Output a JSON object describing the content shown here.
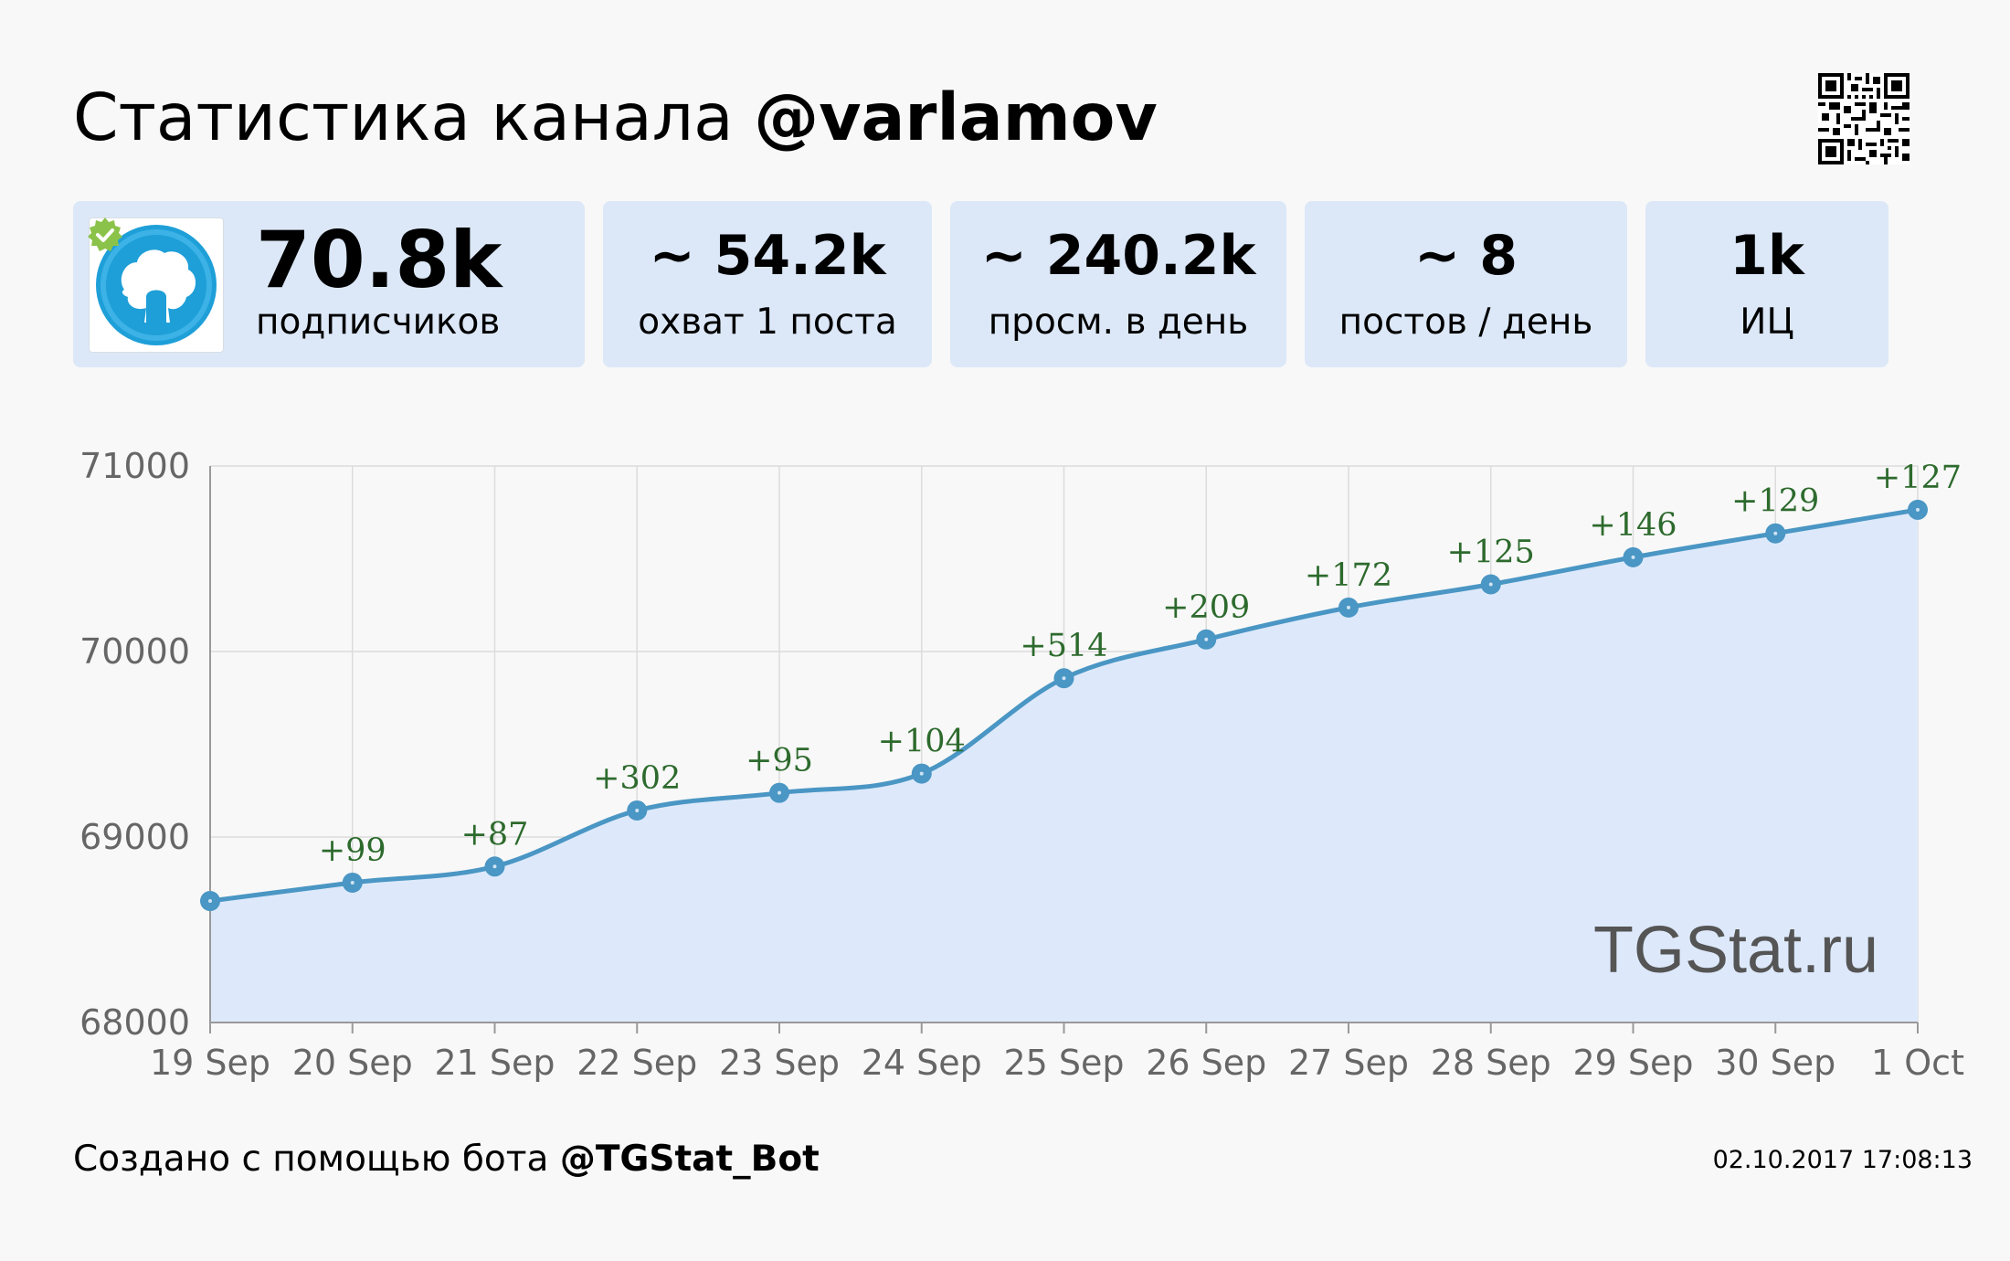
{
  "title": {
    "prefix": "Статистика канала",
    "channel": "@varlamov"
  },
  "stats": {
    "subscribers": {
      "value": "70.8k",
      "label": "подписчиков"
    },
    "reach": {
      "value": "~ 54.2k",
      "label": "охват 1 поста"
    },
    "views": {
      "value": "~ 240.2k",
      "label": "просм. в день"
    },
    "posts": {
      "value": "~ 8",
      "label": "постов / день"
    },
    "ic": {
      "value": "1k",
      "label": "ИЦ"
    }
  },
  "watermark": "TGStat.ru",
  "footer": {
    "prefix": "Создано с помощью бота",
    "bot": "@TGStat_Bot",
    "timestamp": "02.10.2017 17:08:13"
  },
  "colors": {
    "line": "#4a96c4",
    "fill": "#dde9fb",
    "card": "#dce8f8",
    "annotation": "#2d6a2d",
    "axis_text": "#666666",
    "verified": "#8bc34a",
    "avatar": "#1e9fd8"
  },
  "icons": {
    "qr": "qr-code-icon",
    "verified": "verified-badge-icon",
    "avatar": "channel-avatar"
  },
  "chart_data": {
    "type": "area",
    "title": "",
    "xlabel": "",
    "ylabel": "",
    "categories": [
      "19 Sep",
      "20 Sep",
      "21 Sep",
      "22 Sep",
      "23 Sep",
      "24 Sep",
      "25 Sep",
      "26 Sep",
      "27 Sep",
      "28 Sep",
      "29 Sep",
      "30 Sep",
      "1 Oct"
    ],
    "series": [
      {
        "values": [
          68655,
          68754,
          68841,
          69143,
          69238,
          69342,
          69856,
          70065,
          70237,
          70362,
          70508,
          70637,
          70764
        ]
      }
    ],
    "data_labels": [
      "",
      "+99",
      "+87",
      "+302",
      "+95",
      "+104",
      "+514",
      "+209",
      "+172",
      "+125",
      "+146",
      "+129",
      "+127"
    ],
    "y_ticks": [
      68000,
      69000,
      70000,
      71000
    ],
    "ylim": [
      68000,
      71000
    ],
    "grid": true,
    "legend": "none"
  }
}
